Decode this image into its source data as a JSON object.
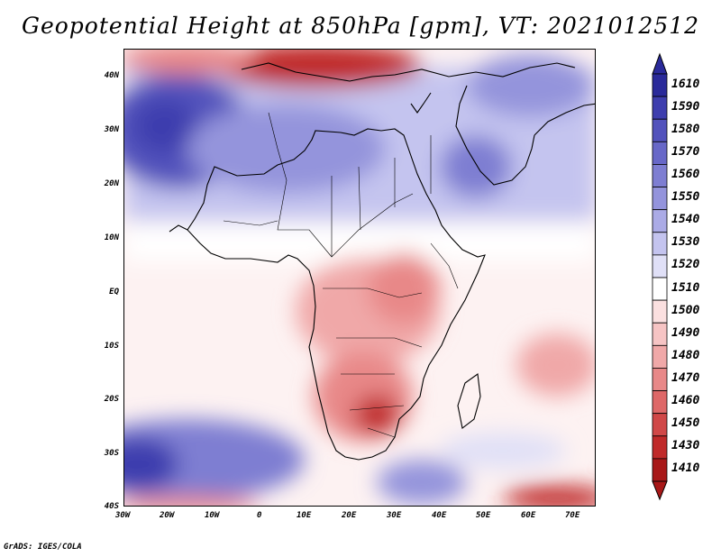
{
  "title": "Geopotential Height at 850hPa [gpm], VT: 2021012512",
  "footer": "GrADS: IGES/COLA",
  "lat_labels": [
    "40N",
    "30N",
    "20N",
    "10N",
    "EQ",
    "10S",
    "20S",
    "30S",
    "40S"
  ],
  "lon_labels": [
    "30W",
    "20W",
    "10W",
    "0",
    "10E",
    "20E",
    "30E",
    "40E",
    "50E",
    "60E",
    "70E"
  ],
  "colorbar": {
    "levels": [
      "1610",
      "1590",
      "1580",
      "1570",
      "1560",
      "1550",
      "1540",
      "1530",
      "1520",
      "1510",
      "1500",
      "1490",
      "1480",
      "1470",
      "1460",
      "1450",
      "1430",
      "1410"
    ],
    "colors": [
      "#2a2a9a",
      "#3e3eae",
      "#5252bc",
      "#6868c8",
      "#7e7ed2",
      "#9494dc",
      "#ababe6",
      "#c4c4ef",
      "#e0e0f7",
      "#ffffff",
      "#fbe0e0",
      "#f6c4c4",
      "#f0a8a8",
      "#e88888",
      "#de6868",
      "#d04848",
      "#c02a2a",
      "#a81818"
    ]
  },
  "legend_colors": {
    "deep_blue": "#3a3aac",
    "blue": "#6a6ace",
    "light_blue": "#b8b8ec",
    "pale_blue": "#e2e2f8",
    "pale_red": "#f9dada",
    "light_red": "#f0a6a6",
    "red": "#d95050",
    "deep_red": "#b51c1c",
    "coast": "#000000"
  }
}
